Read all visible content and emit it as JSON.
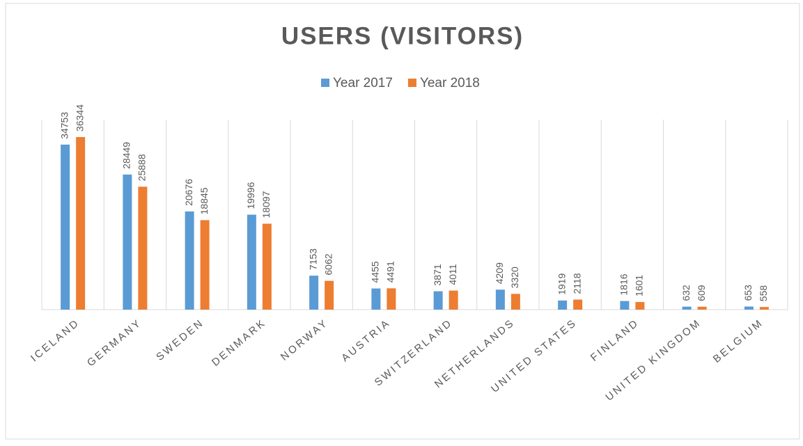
{
  "chart_data": {
    "type": "bar",
    "title": "USERS (VISITORS)",
    "categories": [
      "ICELAND",
      "GERMANY",
      "SWEDEN",
      "DENMARK",
      "NORWAY",
      "AUSTRIA",
      "SWITZERLAND",
      "NETHERLANDS",
      "UNITED STATES",
      "FINLAND",
      "UNITED KINGDOM",
      "BELGIUM"
    ],
    "series": [
      {
        "name": "Year 2017",
        "color": "#5b9bd5",
        "values": [
          34753,
          28449,
          20676,
          19996,
          7153,
          4455,
          3871,
          4209,
          1919,
          1816,
          632,
          653
        ]
      },
      {
        "name": "Year 2018",
        "color": "#ed7d31",
        "values": [
          36344,
          25888,
          18845,
          18097,
          6062,
          4491,
          4011,
          3320,
          2118,
          1601,
          609,
          558
        ]
      }
    ],
    "ylim": [
      0,
      40000
    ],
    "legend": "top"
  }
}
